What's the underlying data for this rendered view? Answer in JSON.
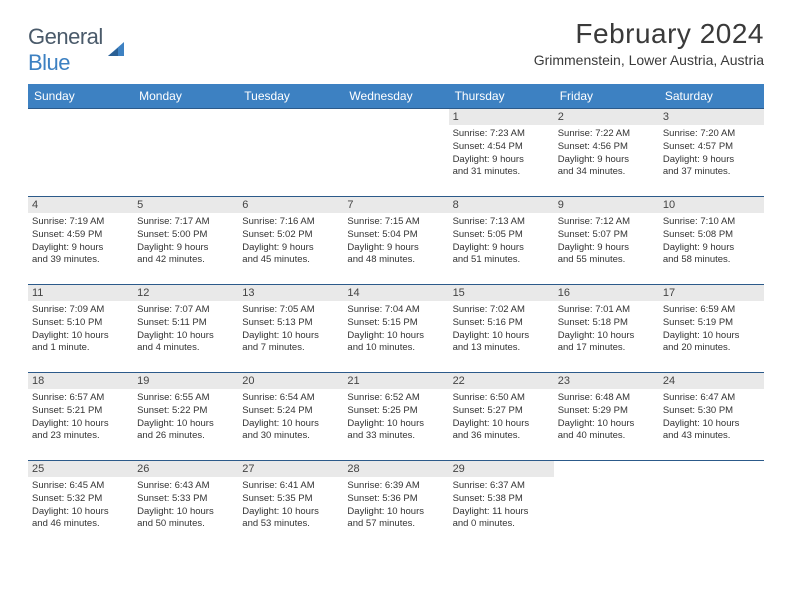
{
  "logo": {
    "text1": "General",
    "text2": "Blue"
  },
  "title": "February 2024",
  "location": "Grimmenstein, Lower Austria, Austria",
  "colors": {
    "header_bg": "#3d81c2",
    "header_text": "#ffffff",
    "daynum_bg": "#e9e9e9",
    "row_border": "#2c5a8a",
    "text": "#333333",
    "logo_gray": "#4a5a6a",
    "logo_blue": "#3d81c2",
    "page_bg": "#ffffff"
  },
  "days_of_week": [
    "Sunday",
    "Monday",
    "Tuesday",
    "Wednesday",
    "Thursday",
    "Friday",
    "Saturday"
  ],
  "weeks": [
    [
      null,
      null,
      null,
      null,
      {
        "n": "1",
        "sr": "Sunrise: 7:23 AM",
        "ss": "Sunset: 4:54 PM",
        "dl1": "Daylight: 9 hours",
        "dl2": "and 31 minutes."
      },
      {
        "n": "2",
        "sr": "Sunrise: 7:22 AM",
        "ss": "Sunset: 4:56 PM",
        "dl1": "Daylight: 9 hours",
        "dl2": "and 34 minutes."
      },
      {
        "n": "3",
        "sr": "Sunrise: 7:20 AM",
        "ss": "Sunset: 4:57 PM",
        "dl1": "Daylight: 9 hours",
        "dl2": "and 37 minutes."
      }
    ],
    [
      {
        "n": "4",
        "sr": "Sunrise: 7:19 AM",
        "ss": "Sunset: 4:59 PM",
        "dl1": "Daylight: 9 hours",
        "dl2": "and 39 minutes."
      },
      {
        "n": "5",
        "sr": "Sunrise: 7:17 AM",
        "ss": "Sunset: 5:00 PM",
        "dl1": "Daylight: 9 hours",
        "dl2": "and 42 minutes."
      },
      {
        "n": "6",
        "sr": "Sunrise: 7:16 AM",
        "ss": "Sunset: 5:02 PM",
        "dl1": "Daylight: 9 hours",
        "dl2": "and 45 minutes."
      },
      {
        "n": "7",
        "sr": "Sunrise: 7:15 AM",
        "ss": "Sunset: 5:04 PM",
        "dl1": "Daylight: 9 hours",
        "dl2": "and 48 minutes."
      },
      {
        "n": "8",
        "sr": "Sunrise: 7:13 AM",
        "ss": "Sunset: 5:05 PM",
        "dl1": "Daylight: 9 hours",
        "dl2": "and 51 minutes."
      },
      {
        "n": "9",
        "sr": "Sunrise: 7:12 AM",
        "ss": "Sunset: 5:07 PM",
        "dl1": "Daylight: 9 hours",
        "dl2": "and 55 minutes."
      },
      {
        "n": "10",
        "sr": "Sunrise: 7:10 AM",
        "ss": "Sunset: 5:08 PM",
        "dl1": "Daylight: 9 hours",
        "dl2": "and 58 minutes."
      }
    ],
    [
      {
        "n": "11",
        "sr": "Sunrise: 7:09 AM",
        "ss": "Sunset: 5:10 PM",
        "dl1": "Daylight: 10 hours",
        "dl2": "and 1 minute."
      },
      {
        "n": "12",
        "sr": "Sunrise: 7:07 AM",
        "ss": "Sunset: 5:11 PM",
        "dl1": "Daylight: 10 hours",
        "dl2": "and 4 minutes."
      },
      {
        "n": "13",
        "sr": "Sunrise: 7:05 AM",
        "ss": "Sunset: 5:13 PM",
        "dl1": "Daylight: 10 hours",
        "dl2": "and 7 minutes."
      },
      {
        "n": "14",
        "sr": "Sunrise: 7:04 AM",
        "ss": "Sunset: 5:15 PM",
        "dl1": "Daylight: 10 hours",
        "dl2": "and 10 minutes."
      },
      {
        "n": "15",
        "sr": "Sunrise: 7:02 AM",
        "ss": "Sunset: 5:16 PM",
        "dl1": "Daylight: 10 hours",
        "dl2": "and 13 minutes."
      },
      {
        "n": "16",
        "sr": "Sunrise: 7:01 AM",
        "ss": "Sunset: 5:18 PM",
        "dl1": "Daylight: 10 hours",
        "dl2": "and 17 minutes."
      },
      {
        "n": "17",
        "sr": "Sunrise: 6:59 AM",
        "ss": "Sunset: 5:19 PM",
        "dl1": "Daylight: 10 hours",
        "dl2": "and 20 minutes."
      }
    ],
    [
      {
        "n": "18",
        "sr": "Sunrise: 6:57 AM",
        "ss": "Sunset: 5:21 PM",
        "dl1": "Daylight: 10 hours",
        "dl2": "and 23 minutes."
      },
      {
        "n": "19",
        "sr": "Sunrise: 6:55 AM",
        "ss": "Sunset: 5:22 PM",
        "dl1": "Daylight: 10 hours",
        "dl2": "and 26 minutes."
      },
      {
        "n": "20",
        "sr": "Sunrise: 6:54 AM",
        "ss": "Sunset: 5:24 PM",
        "dl1": "Daylight: 10 hours",
        "dl2": "and 30 minutes."
      },
      {
        "n": "21",
        "sr": "Sunrise: 6:52 AM",
        "ss": "Sunset: 5:25 PM",
        "dl1": "Daylight: 10 hours",
        "dl2": "and 33 minutes."
      },
      {
        "n": "22",
        "sr": "Sunrise: 6:50 AM",
        "ss": "Sunset: 5:27 PM",
        "dl1": "Daylight: 10 hours",
        "dl2": "and 36 minutes."
      },
      {
        "n": "23",
        "sr": "Sunrise: 6:48 AM",
        "ss": "Sunset: 5:29 PM",
        "dl1": "Daylight: 10 hours",
        "dl2": "and 40 minutes."
      },
      {
        "n": "24",
        "sr": "Sunrise: 6:47 AM",
        "ss": "Sunset: 5:30 PM",
        "dl1": "Daylight: 10 hours",
        "dl2": "and 43 minutes."
      }
    ],
    [
      {
        "n": "25",
        "sr": "Sunrise: 6:45 AM",
        "ss": "Sunset: 5:32 PM",
        "dl1": "Daylight: 10 hours",
        "dl2": "and 46 minutes."
      },
      {
        "n": "26",
        "sr": "Sunrise: 6:43 AM",
        "ss": "Sunset: 5:33 PM",
        "dl1": "Daylight: 10 hours",
        "dl2": "and 50 minutes."
      },
      {
        "n": "27",
        "sr": "Sunrise: 6:41 AM",
        "ss": "Sunset: 5:35 PM",
        "dl1": "Daylight: 10 hours",
        "dl2": "and 53 minutes."
      },
      {
        "n": "28",
        "sr": "Sunrise: 6:39 AM",
        "ss": "Sunset: 5:36 PM",
        "dl1": "Daylight: 10 hours",
        "dl2": "and 57 minutes."
      },
      {
        "n": "29",
        "sr": "Sunrise: 6:37 AM",
        "ss": "Sunset: 5:38 PM",
        "dl1": "Daylight: 11 hours",
        "dl2": "and 0 minutes."
      },
      null,
      null
    ]
  ]
}
